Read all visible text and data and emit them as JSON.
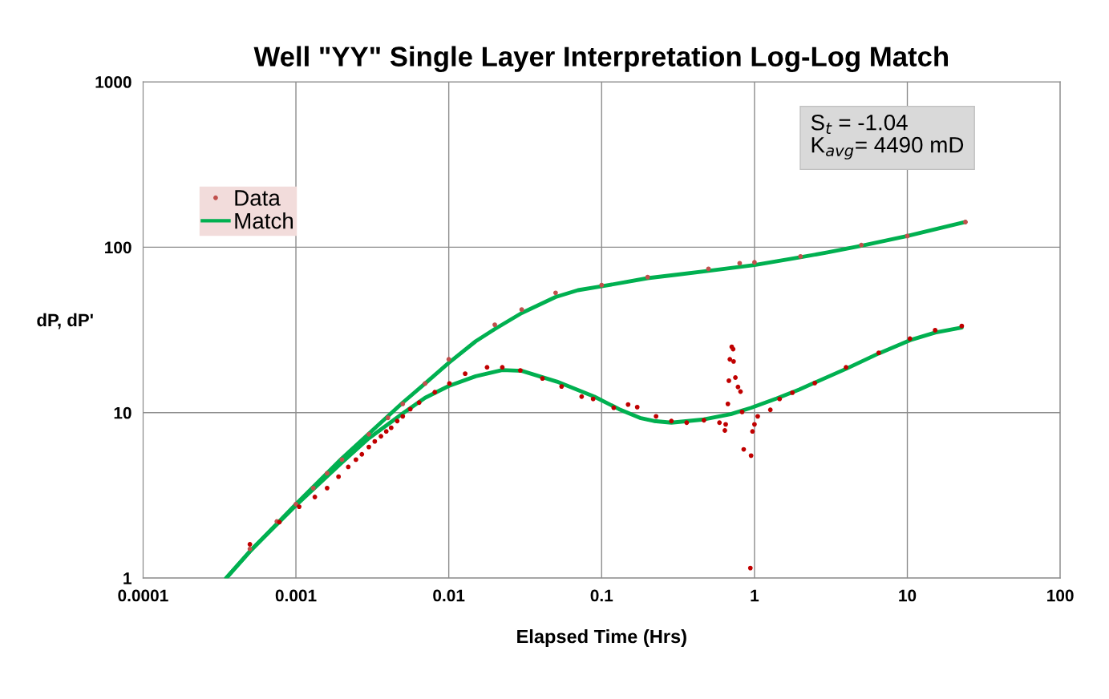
{
  "chart_data": {
    "type": "scatter",
    "title": "Well \"YY\" Single Layer Interpretation Log-Log Match",
    "xlabel": "Elapsed Time (Hrs)",
    "ylabel": "dP, dP'",
    "log": "xy",
    "grid": true,
    "legend": "top left",
    "marker": "circle",
    "xlim": [
      0.0001,
      100
    ],
    "xticks": [
      0.0001,
      0.001,
      0.01,
      0.1,
      1,
      10,
      100
    ],
    "ylim": [
      1,
      1000
    ],
    "yticks": [
      1,
      10,
      100,
      1000
    ],
    "annotations": [
      "S$_{t}$ = -1.04\nK$_{avg}$= 4490 mD"
    ],
    "series": [
      {
        "name": "Data",
        "color": "#c0504d",
        "x": [
          0.0005,
          0.00075,
          0.001,
          0.0013,
          0.0016,
          0.002,
          0.003,
          0.004,
          0.005,
          0.007,
          0.01,
          0.02,
          0.03,
          0.05,
          0.1,
          0.2,
          0.5,
          0.8,
          1,
          2,
          5,
          10,
          24
        ],
        "values": [
          1.5,
          2.2,
          2.8,
          3.5,
          4.3,
          5.2,
          7.4,
          9.3,
          11.3,
          15,
          21,
          34,
          42,
          53,
          59,
          66,
          74,
          80,
          81,
          88,
          103,
          117,
          142
        ]
      },
      {
        "color": "#c00000",
        "x": [
          0.0005,
          0.00078,
          0.00105,
          0.00133,
          0.0016,
          0.0019,
          0.0022,
          0.00247,
          0.0027,
          0.003,
          0.00328,
          0.0036,
          0.0039,
          0.0042,
          0.0046,
          0.005,
          0.0056,
          0.0064,
          0.0081,
          0.0101,
          0.0128,
          0.0178,
          0.0224,
          0.0294,
          0.041,
          0.0547,
          0.074,
          0.088,
          0.12,
          0.149,
          0.171,
          0.227,
          0.286,
          0.36,
          0.467,
          0.59,
          0.648,
          0.64,
          0.67,
          0.68,
          0.69,
          0.71,
          0.725,
          0.73,
          0.75,
          0.78,
          0.81,
          0.83,
          0.85,
          0.95,
          0.94,
          0.97,
          1.0,
          1.05,
          1.27,
          1.46,
          1.77,
          2.48,
          3.97,
          6.5,
          10.4,
          15.2,
          22.7
        ],
        "values": [
          1.6,
          2.18,
          2.7,
          3.09,
          3.5,
          4.1,
          4.7,
          5.2,
          5.6,
          6.2,
          6.7,
          7.2,
          7.7,
          8.1,
          8.9,
          9.5,
          10.5,
          11.5,
          13.3,
          15,
          17.2,
          18.8,
          18.8,
          18,
          16.1,
          14.4,
          12.5,
          12.1,
          10.7,
          11.2,
          10.8,
          9.5,
          8.9,
          8.7,
          9.0,
          8.7,
          8.5,
          7.8,
          11.3,
          15.6,
          21,
          25,
          24.2,
          20.4,
          16.3,
          14.3,
          13.4,
          10.1,
          6.0,
          5.5,
          1.15,
          7.7,
          8.5,
          9.5,
          10.4,
          12.1,
          13.2,
          15.1,
          18.8,
          23,
          28,
          31.5,
          33.4
        ]
      },
      {
        "name": "Match",
        "type": "line",
        "color": "#00b050",
        "marker": "none",
        "x": [
          0.00035,
          0.0005,
          0.001,
          0.002,
          0.005,
          0.007,
          0.01,
          0.015,
          0.02,
          0.03,
          0.05,
          0.07,
          0.1,
          0.2,
          0.3,
          0.5,
          1,
          2,
          3,
          5,
          10,
          24
        ],
        "values": [
          1,
          1.45,
          2.8,
          5.3,
          11.5,
          15,
          20,
          27,
          32,
          40,
          50,
          55,
          58,
          65,
          68,
          72,
          78,
          87,
          93,
          102,
          117,
          142
        ]
      },
      {
        "type": "line",
        "color": "#00b050",
        "marker": "none",
        "x": [
          0.00035,
          0.0005,
          0.001,
          0.002,
          0.003,
          0.005,
          0.007,
          0.01,
          0.015,
          0.0224,
          0.03,
          0.051,
          0.0895,
          0.13,
          0.178,
          0.22,
          0.286,
          0.467,
          0.7,
          0.95,
          1.4,
          1.96,
          3.97,
          6.5,
          10.4,
          15.2,
          22.7
        ],
        "values": [
          1,
          1.45,
          2.75,
          5.0,
          7.0,
          9.9,
          12.3,
          14.5,
          16.6,
          18.1,
          17.9,
          15.4,
          12.5,
          10.5,
          9.3,
          8.9,
          8.7,
          9.1,
          9.8,
          10.7,
          12.2,
          13.8,
          18.4,
          22.8,
          27.4,
          30.5,
          32.7
        ]
      }
    ]
  }
}
